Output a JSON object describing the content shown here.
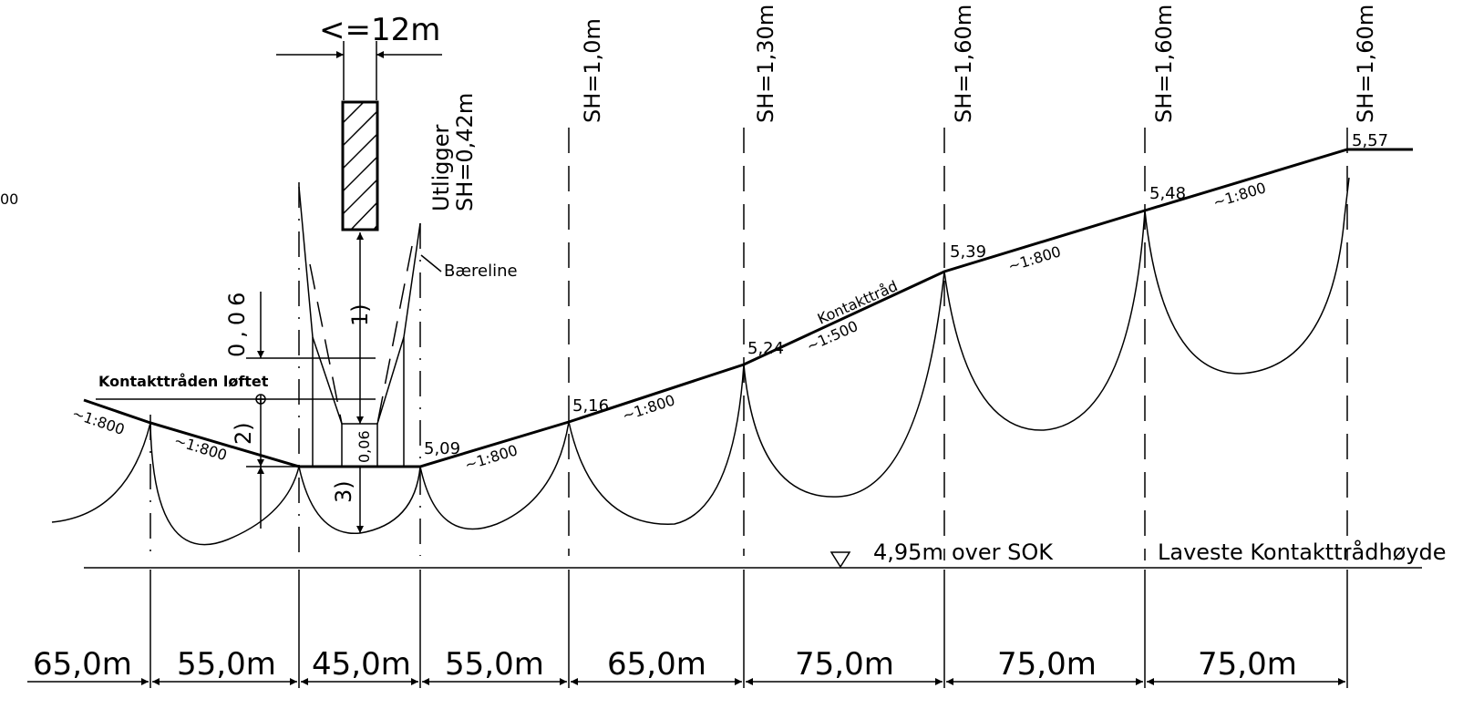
{
  "top_width_label": "<=12m",
  "left_scale_fragment": "00",
  "cantilever": {
    "label": "Utligger",
    "system_height": "SH=0,42m"
  },
  "carrier_wire_label": "Bæreline",
  "contact_wire_label": "Kontakttråd",
  "lifted_label": "Kontakttråden løftet",
  "dimension_notes": {
    "dim_006_vertical": "0,06",
    "dim_006_small": "0,06",
    "note_1": "1)",
    "note_2": "2)",
    "note_3": "3)"
  },
  "system_heights": [
    "SH=1,0m",
    "SH=1,30m",
    "SH=1,60m",
    "SH=1,60m",
    "SH=1,60m"
  ],
  "wire_heights": [
    "5,09",
    "5,16",
    "5,24",
    "5,39",
    "5,48",
    "5,57"
  ],
  "gradients": [
    "~1:800",
    "~1:800",
    "~1:800",
    "~1:800",
    "~1:500",
    "~1:800",
    "~1:800"
  ],
  "reference_line": {
    "height_label": "4,95m",
    "over_label": "over SOK",
    "lowest_label": "Laveste Kontakttrådhøyde"
  },
  "span_lengths": [
    "65,0m",
    "55,0m",
    "45,0m",
    "55,0m",
    "65,0m",
    "75,0m",
    "75,0m",
    "75,0m"
  ]
}
